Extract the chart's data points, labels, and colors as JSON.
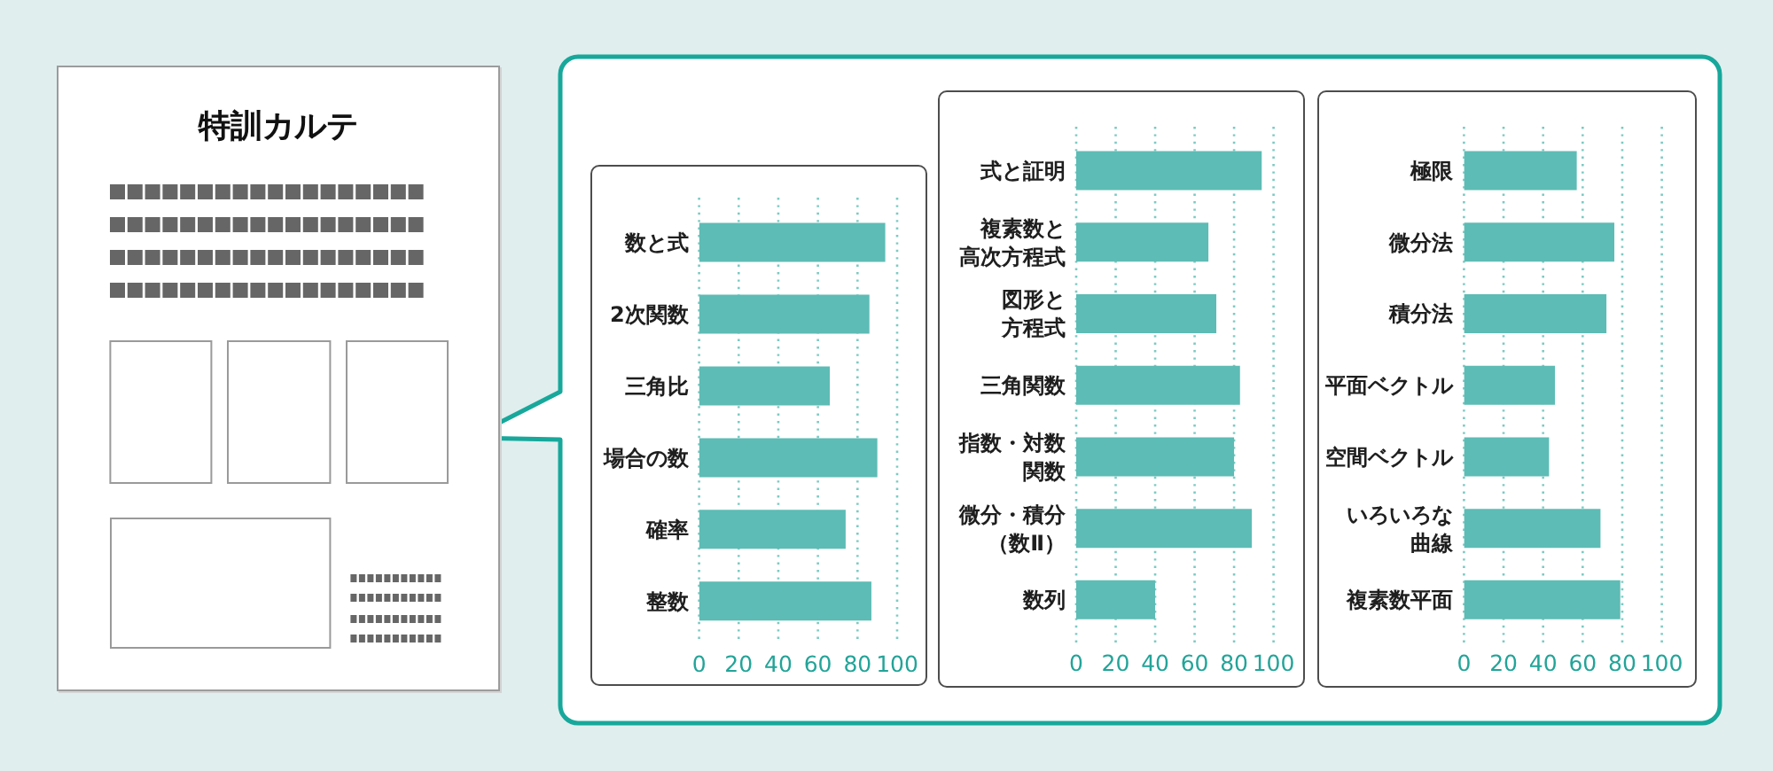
{
  "chart_data": [
    {
      "type": "other",
      "title": "特訓カルテ"
    },
    {
      "type": "bar",
      "orientation": "horizontal",
      "categories": [
        "数と式",
        "2次関数",
        "三角比",
        "場合の数",
        "確率",
        "整数"
      ],
      "values": [
        94,
        86,
        66,
        90,
        74,
        87
      ],
      "color": "#5dbcb5",
      "xlim": [
        0,
        100
      ],
      "xticks": [
        0,
        20,
        40,
        60,
        80,
        100
      ],
      "grid": "x"
    },
    {
      "type": "bar",
      "orientation": "horizontal",
      "categories": [
        "式と証明",
        "複素数と高次方程式",
        "図形と方程式",
        "三角関数",
        "指数・対数関数",
        "微分・積分（数Ⅱ）",
        "数列"
      ],
      "values": [
        94,
        67,
        71,
        83,
        80,
        89,
        40
      ],
      "color": "#5dbcb5",
      "xlim": [
        0,
        100
      ],
      "xticks": [
        0,
        20,
        40,
        60,
        80,
        100
      ],
      "grid": "x"
    },
    {
      "type": "bar",
      "orientation": "horizontal",
      "categories": [
        "極限",
        "微分法",
        "積分法",
        "平面ベクトル",
        "空間ベクトル",
        "いろいろな曲線",
        "複素数平面"
      ],
      "values": [
        57,
        76,
        72,
        46,
        43,
        69,
        79
      ],
      "color": "#5dbcb5",
      "xlim": [
        0,
        100
      ],
      "xticks": [
        0,
        20,
        40,
        60,
        80,
        100
      ],
      "grid": "x"
    }
  ]
}
